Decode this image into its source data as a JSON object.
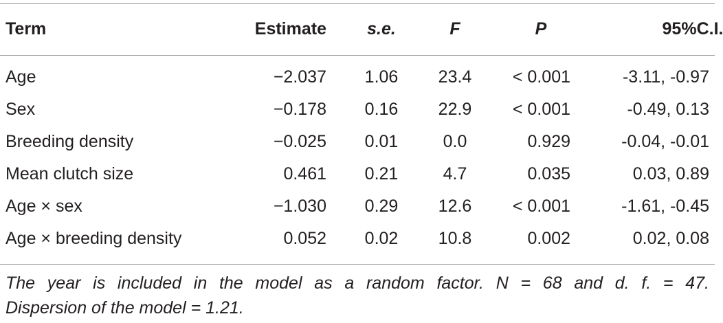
{
  "table": {
    "header": [
      "Term",
      "Estimate",
      "s.e.",
      "F",
      "P",
      "95%C.I."
    ],
    "rows": [
      [
        "Age",
        "−2.037",
        "1.06",
        "23.4",
        "< 0.001",
        "-3.11, -0.97"
      ],
      [
        "Sex",
        "−0.178",
        "0.16",
        "22.9",
        "< 0.001",
        "-0.49, 0.13"
      ],
      [
        "Breeding density",
        "−0.025",
        "0.01",
        "0.0",
        "0.929",
        "-0.04, -0.01"
      ],
      [
        "Mean clutch size",
        "0.461",
        "0.21",
        "4.7",
        "0.035",
        "0.03, 0.89"
      ],
      [
        "Age × sex",
        "−1.030",
        "0.29",
        "12.6",
        "< 0.001",
        "-1.61, -0.45"
      ],
      [
        "Age × breeding density",
        "0.052",
        "0.02",
        "10.8",
        "0.002",
        "0.02, 0.08"
      ]
    ],
    "footnote": [
      "The year is included in the model as a random factor. N = 68 and d. f. = 47.",
      "Dispersion of the model = 1.21."
    ]
  }
}
